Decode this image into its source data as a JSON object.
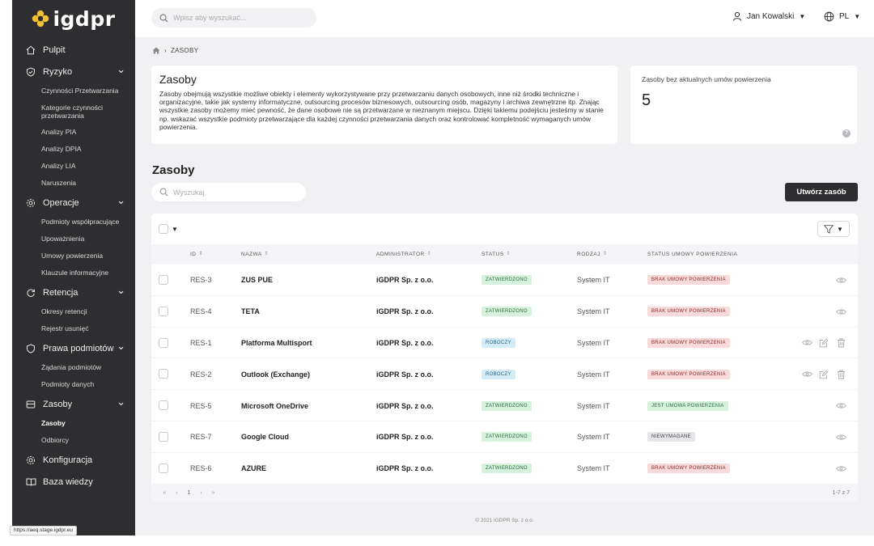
{
  "app": {
    "logo_text": "igdpr"
  },
  "colors": {
    "sidebar_bg": "#2e2e30",
    "main_bg": "#f1f1f3",
    "logo_accent": "#f2c233"
  },
  "sidebar": {
    "groups": [
      {
        "icon": "home-icon",
        "label": "Pulpit",
        "items": []
      },
      {
        "icon": "shield-icon",
        "label": "Ryzyko",
        "expanded": true,
        "items": [
          "Czynności Przetwarzania",
          "Kategorie czynności przetwarzania",
          "Analizy PIA",
          "Analizy DPIA",
          "Analizy LIA",
          "Naruszenia"
        ]
      },
      {
        "icon": "gear-icon",
        "label": "Operacje",
        "expanded": true,
        "items": [
          "Podmioty współpracujące",
          "Upoważnienia",
          "Umowy powierzenia",
          "Klauzule informacyjne"
        ]
      },
      {
        "icon": "refresh-icon",
        "label": "Retencja",
        "expanded": true,
        "items": [
          "Okresy retencji",
          "Rejestr usunięć"
        ]
      },
      {
        "icon": "shield-outline-icon",
        "label": "Prawa podmiotów",
        "expanded": true,
        "items": [
          "Żądania podmiotów",
          "Podmioty danych"
        ]
      },
      {
        "icon": "box-icon",
        "label": "Zasoby",
        "expanded": true,
        "items": [
          "Zasoby",
          "Odbiorcy"
        ],
        "active_item": "Zasoby"
      },
      {
        "icon": "settings-icon",
        "label": "Konfiguracja",
        "items": []
      },
      {
        "icon": "book-icon",
        "label": "Baza wiedzy",
        "items": []
      }
    ]
  },
  "topbar": {
    "search_placeholder": "Wpisz aby wyszukać...",
    "user_name": "Jan Kowalski",
    "language": "PL"
  },
  "breadcrumb": {
    "current": "ZASOBY"
  },
  "info_card": {
    "title": "Zasoby",
    "text": "Zasoby obejmują wszystkie możliwe obiekty i elementy wykorzystywane przy przetwarzaniu danych osobowych, inne niż środki techniczne i organizacyjne, takie jak systemy informatyczne, outsourcing procesów biznesowych, outsourcing osób, magazyny i archiwa zewnętrzne itp. Znając wszystkie zasoby możemy mieć pewność, że dane osobowe nie są przetwarzane w nieznanym miejscu. Dzięki takiemu podejściu jesteśmy w stanie np. wskazać wszystkie podmioty przetwarzające dla każdej czynności przetwarzania danych oraz kontrolować kompletność wymaganych umów powierzenia."
  },
  "stat_card": {
    "label": "Zasoby bez aktualnych umów powierzenia",
    "value": "5",
    "help": "?"
  },
  "list": {
    "title": "Zasoby",
    "search_placeholder": "Wyszukaj",
    "create_label": "Utwórz zasób",
    "columns": [
      "ID",
      "NAZWA",
      "ADMINISTRATOR",
      "STATUS",
      "RODZAJ",
      "STATUS UMOWY POWIERZENIA"
    ],
    "rows": [
      {
        "id": "RES-3",
        "name": "ZUS PUE",
        "admin": "iGDPR Sp. z o.o.",
        "status": "ZATWIERDZONO",
        "status_kind": "green",
        "type": "System IT",
        "contract": "BRAK UMOWY POWIERZENIA",
        "contract_kind": "red",
        "editable": false
      },
      {
        "id": "RES-4",
        "name": "TETA",
        "admin": "iGDPR Sp. z o.o.",
        "status": "ZATWIERDZONO",
        "status_kind": "green",
        "type": "System IT",
        "contract": "BRAK UMOWY POWIERZENIA",
        "contract_kind": "red",
        "editable": false
      },
      {
        "id": "RES-1",
        "name": "Platforma Multisport",
        "admin": "iGDPR Sp. z o.o.",
        "status": "ROBOCZY",
        "status_kind": "blue",
        "type": "System IT",
        "contract": "BRAK UMOWY POWIERZENIA",
        "contract_kind": "red",
        "editable": true
      },
      {
        "id": "RES-2",
        "name": "Outlook (Exchange)",
        "admin": "iGDPR Sp. z o.o.",
        "status": "ROBOCZY",
        "status_kind": "blue",
        "type": "System IT",
        "contract": "BRAK UMOWY POWIERZENIA",
        "contract_kind": "red",
        "editable": true
      },
      {
        "id": "RES-5",
        "name": "Microsoft OneDrive",
        "admin": "iGDPR Sp. z o.o.",
        "status": "ZATWIERDZONO",
        "status_kind": "green",
        "type": "System IT",
        "contract": "JEST UMOWA POWIERZENIA",
        "contract_kind": "green",
        "editable": false
      },
      {
        "id": "RES-7",
        "name": "Google Cloud",
        "admin": "iGDPR Sp. z o.o.",
        "status": "ZATWIERDZONO",
        "status_kind": "green",
        "type": "System IT",
        "contract": "NIEWYMAGANE",
        "contract_kind": "grey",
        "editable": false
      },
      {
        "id": "RES-6",
        "name": "AZURE",
        "admin": "iGDPR Sp. z o.o.",
        "status": "ZATWIERDZONO",
        "status_kind": "green",
        "type": "System IT",
        "contract": "BRAK UMOWY POWIERZENIA",
        "contract_kind": "red",
        "editable": false
      }
    ],
    "pagination": {
      "first": "«",
      "prev": "‹",
      "page": "1",
      "next": "›",
      "last": "»",
      "info": "1-7 z 7"
    }
  },
  "footer": {
    "text": "© 2021 iGDPR Sp. z o.o."
  },
  "status_bar": {
    "url": "https://aeq.stage.igdpr.eu"
  }
}
